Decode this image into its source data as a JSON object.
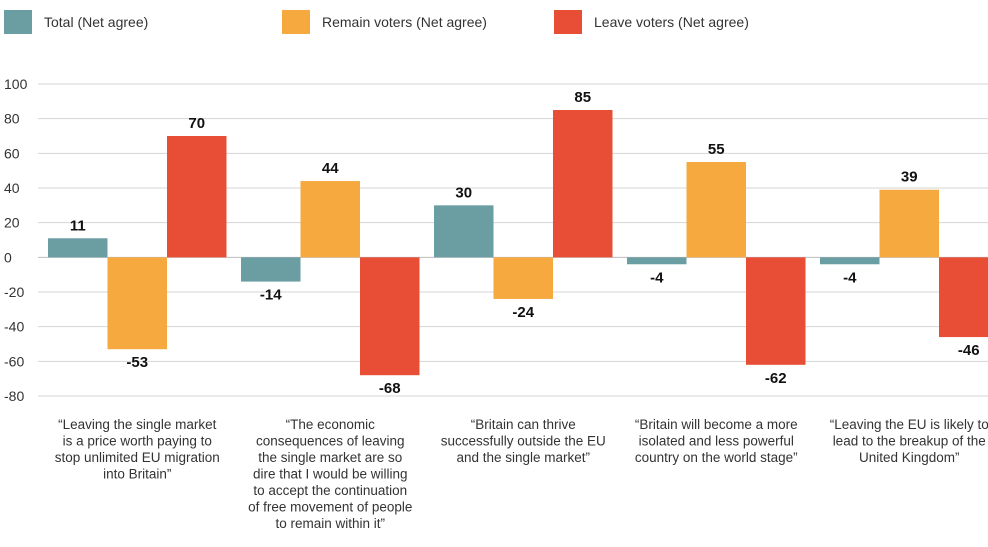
{
  "colors": {
    "total": "#6b9ea3",
    "remain": "#f5a93f",
    "leave": "#e84e35",
    "grid": "#d4d4d4",
    "text": "#333333"
  },
  "legend": {
    "items": [
      {
        "label": "Total (Net agree)",
        "color": "#6b9ea3"
      },
      {
        "label": "Remain voters (Net agree)",
        "color": "#f5a93f"
      },
      {
        "label": "Leave voters (Net agree)",
        "color": "#e84e35"
      }
    ]
  },
  "chart_data": {
    "type": "bar",
    "title": "",
    "xlabel": "",
    "ylabel": "",
    "ylim": [
      -80,
      100
    ],
    "yticks": [
      100,
      80,
      60,
      40,
      20,
      0,
      -20,
      -40,
      -60,
      -80
    ],
    "grid": true,
    "legend_position": "top",
    "categories": [
      [
        "“Leaving the single market",
        "is a price worth paying to",
        "stop unlimited EU migration",
        "into Britain”"
      ],
      [
        "“The economic",
        "consequences of leaving",
        "the single market are so",
        "dire that I would be willing",
        "to accept the continuation",
        "of free movement of people",
        "to remain within it”"
      ],
      [
        "“Britain can thrive",
        "successfully outside the EU",
        "and the single market”"
      ],
      [
        "“Britain will become a more",
        "isolated and less powerful",
        "country on the world stage”"
      ],
      [
        "“Leaving the EU is likely to",
        "lead to the breakup of the",
        "United Kingdom”"
      ]
    ],
    "series": [
      {
        "name": "Total (Net agree)",
        "color": "#6b9ea3",
        "values": [
          11,
          -14,
          30,
          -4,
          -4
        ]
      },
      {
        "name": "Remain voters (Net agree)",
        "color": "#f5a93f",
        "values": [
          -53,
          44,
          -24,
          55,
          39
        ]
      },
      {
        "name": "Leave voters (Net agree)",
        "color": "#e84e35",
        "values": [
          70,
          -68,
          85,
          -62,
          -46
        ]
      }
    ]
  }
}
